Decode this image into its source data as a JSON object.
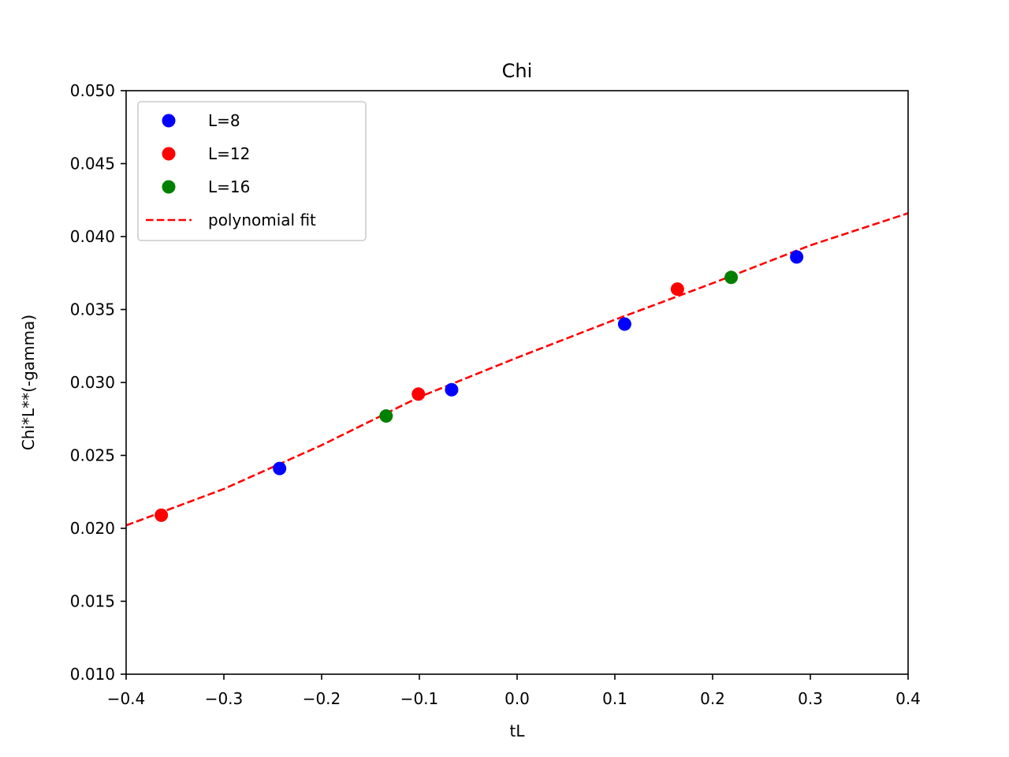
{
  "chart_data": {
    "type": "scatter",
    "title": "Chi",
    "xlabel": "tL",
    "ylabel": "Chi*L**(-gamma)",
    "xlim": [
      -0.4,
      0.4
    ],
    "ylim": [
      0.01,
      0.05
    ],
    "xticks": [
      -0.4,
      -0.3,
      -0.2,
      -0.1,
      0.0,
      0.1,
      0.2,
      0.3,
      0.4
    ],
    "xtick_labels": [
      "−0.4",
      "−0.3",
      "−0.2",
      "−0.1",
      "0.0",
      "0.1",
      "0.2",
      "0.3",
      "0.4"
    ],
    "yticks": [
      0.01,
      0.015,
      0.02,
      0.025,
      0.03,
      0.035,
      0.04,
      0.045,
      0.05
    ],
    "ytick_labels": [
      "0.010",
      "0.015",
      "0.020",
      "0.025",
      "0.030",
      "0.035",
      "0.040",
      "0.045",
      "0.050"
    ],
    "grid": false,
    "legend_position": "top-left",
    "series": [
      {
        "name": "L=8",
        "color": "#0000ff",
        "marker": "circle",
        "points": [
          {
            "x": -0.243,
            "y": 0.0241
          },
          {
            "x": -0.067,
            "y": 0.0295
          },
          {
            "x": 0.11,
            "y": 0.034
          },
          {
            "x": 0.286,
            "y": 0.0386
          }
        ]
      },
      {
        "name": "L=12",
        "color": "#ff0000",
        "marker": "circle",
        "points": [
          {
            "x": -0.364,
            "y": 0.0209
          },
          {
            "x": -0.101,
            "y": 0.0292
          },
          {
            "x": 0.164,
            "y": 0.0364
          }
        ]
      },
      {
        "name": "L=16",
        "color": "#008000",
        "marker": "circle",
        "points": [
          {
            "x": -0.134,
            "y": 0.0277
          },
          {
            "x": 0.219,
            "y": 0.0372
          }
        ]
      },
      {
        "name": "polynomial fit",
        "color": "#ff0000",
        "line_style": "dashed",
        "type": "line",
        "points": [
          {
            "x": -0.4,
            "y": 0.0202
          },
          {
            "x": -0.3,
            "y": 0.0227
          },
          {
            "x": -0.2,
            "y": 0.0257
          },
          {
            "x": -0.1,
            "y": 0.029
          },
          {
            "x": 0.0,
            "y": 0.0317
          },
          {
            "x": 0.1,
            "y": 0.0343
          },
          {
            "x": 0.2,
            "y": 0.0368
          },
          {
            "x": 0.3,
            "y": 0.0394
          },
          {
            "x": 0.4,
            "y": 0.0416
          }
        ]
      }
    ]
  }
}
